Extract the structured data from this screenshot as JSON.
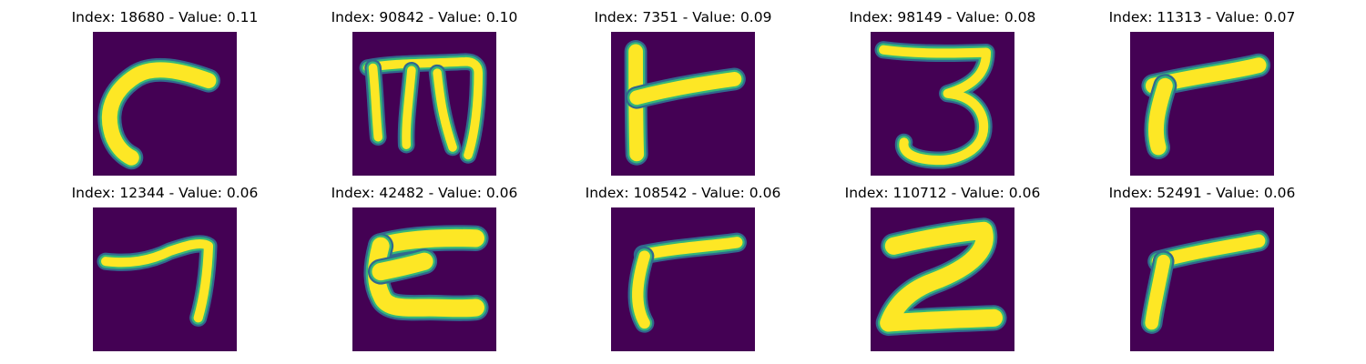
{
  "colors": {
    "background": "#440154",
    "glyph_core": "#fde725",
    "glyph_edge": "#35b779",
    "glyph_halo": "#31688e"
  },
  "panels": [
    {
      "index": "18680",
      "value": "0.11",
      "title": "Index: 18680 - Value: 0.11",
      "glyph": "hook"
    },
    {
      "index": "90842",
      "value": "0.10",
      "title": "Index: 90842 - Value: 0.10",
      "glyph": "comb"
    },
    {
      "index": "7351",
      "value": "0.09",
      "title": "Index: 7351 - Value: 0.09",
      "glyph": "side-t"
    },
    {
      "index": "98149",
      "value": "0.08",
      "title": "Index: 98149 - Value: 0.08",
      "glyph": "three"
    },
    {
      "index": "11313",
      "value": "0.07",
      "title": "Index: 11313 - Value: 0.07",
      "glyph": "gamma"
    },
    {
      "index": "12344",
      "value": "0.06",
      "title": "Index: 12344 - Value: 0.06",
      "glyph": "seven"
    },
    {
      "index": "42482",
      "value": "0.06",
      "title": "Index: 42482 - Value: 0.06",
      "glyph": "bracket"
    },
    {
      "index": "108542",
      "value": "0.06",
      "title": "Index: 108542 - Value: 0.06",
      "glyph": "gamma-thin"
    },
    {
      "index": "110712",
      "value": "0.06",
      "title": "Index: 110712 - Value: 0.06",
      "glyph": "two"
    },
    {
      "index": "52491",
      "value": "0.06",
      "title": "Index: 52491 - Value: 0.06",
      "glyph": "gamma-long"
    }
  ]
}
